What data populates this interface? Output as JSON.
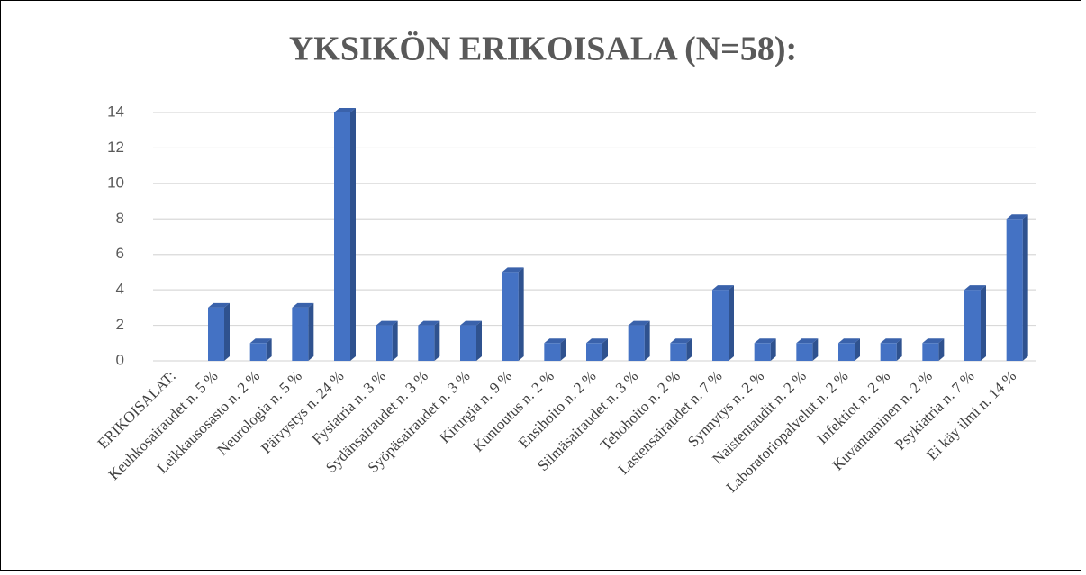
{
  "chart_data": {
    "type": "bar",
    "title": "YKSIKÖN ERIKOISALA (N=58):",
    "categories": [
      "ERIKOISALAT:",
      "Keuhkosairaudet n. 5 %",
      "Leikkausosasto n. 2 %",
      "Neurologia n. 5 %",
      "Päivystys n. 24 %",
      "Fysiatria n. 3 %",
      "Sydänsairaudet n. 3 %",
      "Syöpäsairaudet n. 3 %",
      "Kirurgia n. 9 %",
      "Kuntoutus n. 2 %",
      "Ensihoito n. 2 %",
      "Silmäsairaudet n. 3 %",
      "Tehohoito n. 2 %",
      "Lastensairaudet n. 7 %",
      "Synnytys n. 2 %",
      "Naistentaudit n. 2 %",
      "Laboratoriopalvelut n. 2 %",
      "Infektiot n. 2 %",
      "Kuvantaminen n. 2 %",
      "Psykiatria n. 7 %",
      "Ei käy ilmi n. 14 %"
    ],
    "values": [
      null,
      3,
      1,
      3,
      14,
      2,
      2,
      2,
      5,
      1,
      1,
      2,
      1,
      4,
      1,
      1,
      1,
      1,
      1,
      4,
      8
    ],
    "color": "#4472c4",
    "ylim": [
      0,
      14
    ],
    "yticks": [
      0,
      2,
      4,
      6,
      8,
      10,
      12,
      14
    ],
    "grid": true
  }
}
